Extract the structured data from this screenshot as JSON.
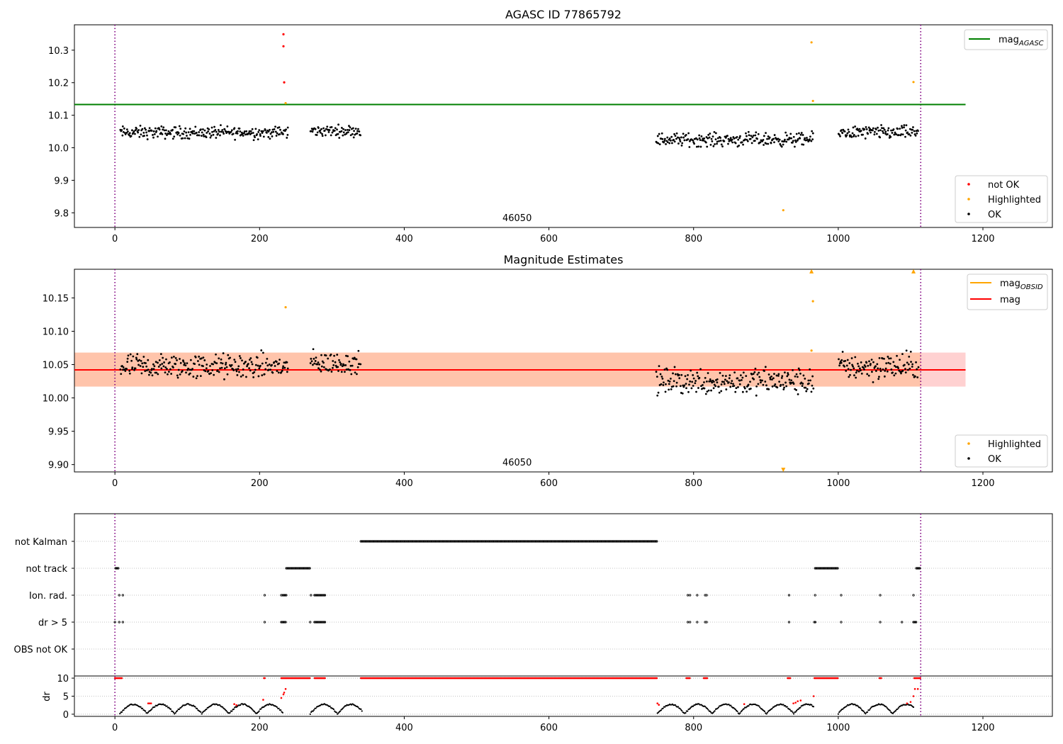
{
  "chart_data": [
    {
      "type": "scatter",
      "title": "AGASC ID 77865792",
      "xlabel": "",
      "ylabel": "",
      "xlim": [
        -56,
        1296
      ],
      "ylim": [
        9.755,
        10.378
      ],
      "xticks": [
        0,
        200,
        400,
        600,
        800,
        1000,
        1200
      ],
      "xtick_labels": [
        "0",
        "200",
        "400",
        "600",
        "800",
        "1000",
        "1200"
      ],
      "yticks": [
        9.8,
        9.9,
        10.0,
        10.1,
        10.2,
        10.3
      ],
      "ytick_labels": [
        "9.8",
        "9.9",
        "10.0",
        "10.1",
        "10.2",
        "10.3"
      ],
      "grid": false,
      "vlines": [
        0,
        1114
      ],
      "annotation": "46050",
      "lines": [
        {
          "name": "mag_AGASC",
          "label_main": "mag",
          "label_sub": "AGASC",
          "color": "#008000",
          "y": 10.133,
          "x_range": [
            -56,
            1176
          ]
        }
      ],
      "series": [
        {
          "name": "not OK",
          "color": "#ff0000",
          "x": [
            233,
            233,
            234
          ],
          "y": [
            10.349,
            10.312,
            10.201
          ]
        },
        {
          "name": "Highlighted",
          "color": "#ffa500",
          "x": [
            236,
            924,
            963,
            965,
            1104
          ],
          "y": [
            10.137,
            9.808,
            10.324,
            10.144,
            10.202
          ]
        },
        {
          "name": "OK",
          "color": "#000000",
          "segments": [
            {
              "x_range": [
                7,
                240
              ],
              "center": 10.047,
              "spread": 0.028
            },
            {
              "x_range": [
                270,
                340
              ],
              "center": 10.052,
              "spread": 0.025
            },
            {
              "x_range": [
                748,
                966
              ],
              "center": 10.025,
              "spread": 0.03
            },
            {
              "x_range": [
                1000,
                1111
              ],
              "center": 10.047,
              "spread": 0.03
            }
          ]
        }
      ],
      "legend_lines": {
        "placement": "top-right",
        "entries": [
          "mag_AGASC"
        ]
      },
      "legend_points": {
        "placement": "bottom-right",
        "entries": [
          "not OK",
          "Highlighted",
          "OK"
        ]
      }
    },
    {
      "type": "scatter",
      "title": "Magnitude Estimates",
      "xlabel": "",
      "ylabel": "",
      "xlim": [
        -56,
        1296
      ],
      "ylim": [
        9.889,
        10.193
      ],
      "xticks": [
        0,
        200,
        400,
        600,
        800,
        1000,
        1200
      ],
      "xtick_labels": [
        "0",
        "200",
        "400",
        "600",
        "800",
        "1000",
        "1200"
      ],
      "yticks": [
        9.9,
        9.95,
        10.0,
        10.05,
        10.1,
        10.15
      ],
      "ytick_labels": [
        "9.90",
        "9.95",
        "10.00",
        "10.05",
        "10.10",
        "10.15"
      ],
      "grid": false,
      "vlines": [
        0,
        1114
      ],
      "annotation": "46050",
      "bands": [
        {
          "name": "mag_OBSID",
          "color": "#ffa500",
          "x_range": [
            -56,
            1114
          ],
          "y_range": [
            10.017,
            10.068
          ]
        },
        {
          "name": "mag",
          "color": "#ff0000",
          "x_range": [
            -56,
            1176
          ],
          "y_range": [
            10.017,
            10.068
          ]
        }
      ],
      "lines": [
        {
          "name": "mag_OBSID",
          "label_main": "mag",
          "label_sub": "OBSID",
          "color": "#ffa500",
          "y": 10.042,
          "x_range": [
            -56,
            1114
          ]
        },
        {
          "name": "mag",
          "label_main": "mag",
          "label_sub": "",
          "color": "#ff0000",
          "y": 10.042,
          "x_range": [
            -56,
            1176
          ]
        }
      ],
      "series": [
        {
          "name": "Highlighted",
          "color": "#ffa500",
          "x": [
            236,
            963,
            965
          ],
          "y": [
            10.136,
            10.071,
            10.145
          ]
        },
        {
          "name": "Highlighted off-scale",
          "color": "#ffa500",
          "marker": "triangle",
          "x": [
            963,
            1104,
            924
          ],
          "y": [
            10.19,
            10.19,
            9.892
          ]
        },
        {
          "name": "OK",
          "color": "#000000",
          "segments": [
            {
              "x_range": [
                7,
                240
              ],
              "center": 10.047,
              "spread": 0.028
            },
            {
              "x_range": [
                270,
                340
              ],
              "center": 10.052,
              "spread": 0.025
            },
            {
              "x_range": [
                748,
                966
              ],
              "center": 10.025,
              "spread": 0.03
            },
            {
              "x_range": [
                1000,
                1111
              ],
              "center": 10.047,
              "spread": 0.03
            }
          ]
        }
      ],
      "legend_lines": {
        "placement": "top-right",
        "entries": [
          "mag_OBSID",
          "mag"
        ]
      },
      "legend_points": {
        "placement": "bottom-right",
        "entries": [
          "Highlighted",
          "OK"
        ]
      }
    },
    {
      "type": "scatter",
      "title": "",
      "xlabel": "",
      "xlim": [
        -56,
        1296
      ],
      "xticks": [
        0,
        200,
        400,
        600,
        800,
        1000,
        1200
      ],
      "xtick_labels": [
        "0",
        "200",
        "400",
        "600",
        "800",
        "1000",
        "1200"
      ],
      "vlines": [
        0,
        1114
      ],
      "flag_rows": [
        "not Kalman",
        "not track",
        "Ion. rad.",
        "dr > 5",
        "OBS not OK"
      ],
      "flags": {
        "not Kalman": {
          "ranges": [
            [
              340,
              750
            ]
          ],
          "points": []
        },
        "not track": {
          "ranges": [
            [
              1,
              5
            ],
            [
              237,
              270
            ],
            [
              968,
              1000
            ],
            [
              1108,
              1114
            ]
          ],
          "points": []
        },
        "Ion. rad.": {
          "ranges": [
            [
              232,
              237
            ],
            [
              276,
              291
            ]
          ],
          "points": [
            6,
            11,
            207,
            230,
            271,
            792,
            795,
            805,
            816,
            818,
            932,
            968,
            1004,
            1058,
            1104
          ]
        },
        "dr > 5": {
          "ranges": [
            [
              230,
              237
            ],
            [
              276,
              291
            ],
            [
              967,
              969
            ],
            [
              1104,
              1108
            ]
          ],
          "points": [
            0,
            6,
            11,
            207,
            270,
            792,
            795,
            805,
            816,
            818,
            932,
            1004,
            1058,
            1088
          ]
        },
        "OBS not OK": {
          "ranges": [],
          "points": []
        }
      },
      "dr_panel": {
        "ylabel": "dr",
        "ylim": [
          -0.6,
          10.6
        ],
        "yticks": [
          0,
          5,
          10
        ],
        "ytick_labels": [
          "0",
          "5",
          "10"
        ],
        "saturated_value": 10,
        "saturated_ranges": [
          [
            0,
            10
          ],
          [
            206,
            208
          ],
          [
            230,
            237
          ],
          [
            237,
            270
          ],
          [
            276,
            291
          ],
          [
            340,
            750
          ],
          [
            790,
            796
          ],
          [
            814,
            820
          ],
          [
            930,
            934
          ],
          [
            967,
            1000
          ],
          [
            1057,
            1060
          ],
          [
            1105,
            1114
          ]
        ],
        "ok_segments": [
          [
            7,
            232
          ],
          [
            270,
            342
          ],
          [
            750,
            966
          ],
          [
            1000,
            1104
          ]
        ],
        "notok_points": {
          "x": [
            46,
            48,
            50,
            165,
            168,
            205,
            230,
            233,
            234,
            236,
            750,
            752,
            870,
            938,
            941,
            944,
            948,
            966,
            1095,
            1100,
            1104,
            1106,
            1110
          ],
          "y": [
            3,
            3,
            3,
            2.8,
            2.5,
            4,
            4.5,
            5.5,
            6,
            7,
            3,
            2.6,
            2.8,
            3,
            3.2,
            3.6,
            3.8,
            5,
            3,
            3.4,
            5,
            7,
            7
          ]
        }
      }
    }
  ]
}
